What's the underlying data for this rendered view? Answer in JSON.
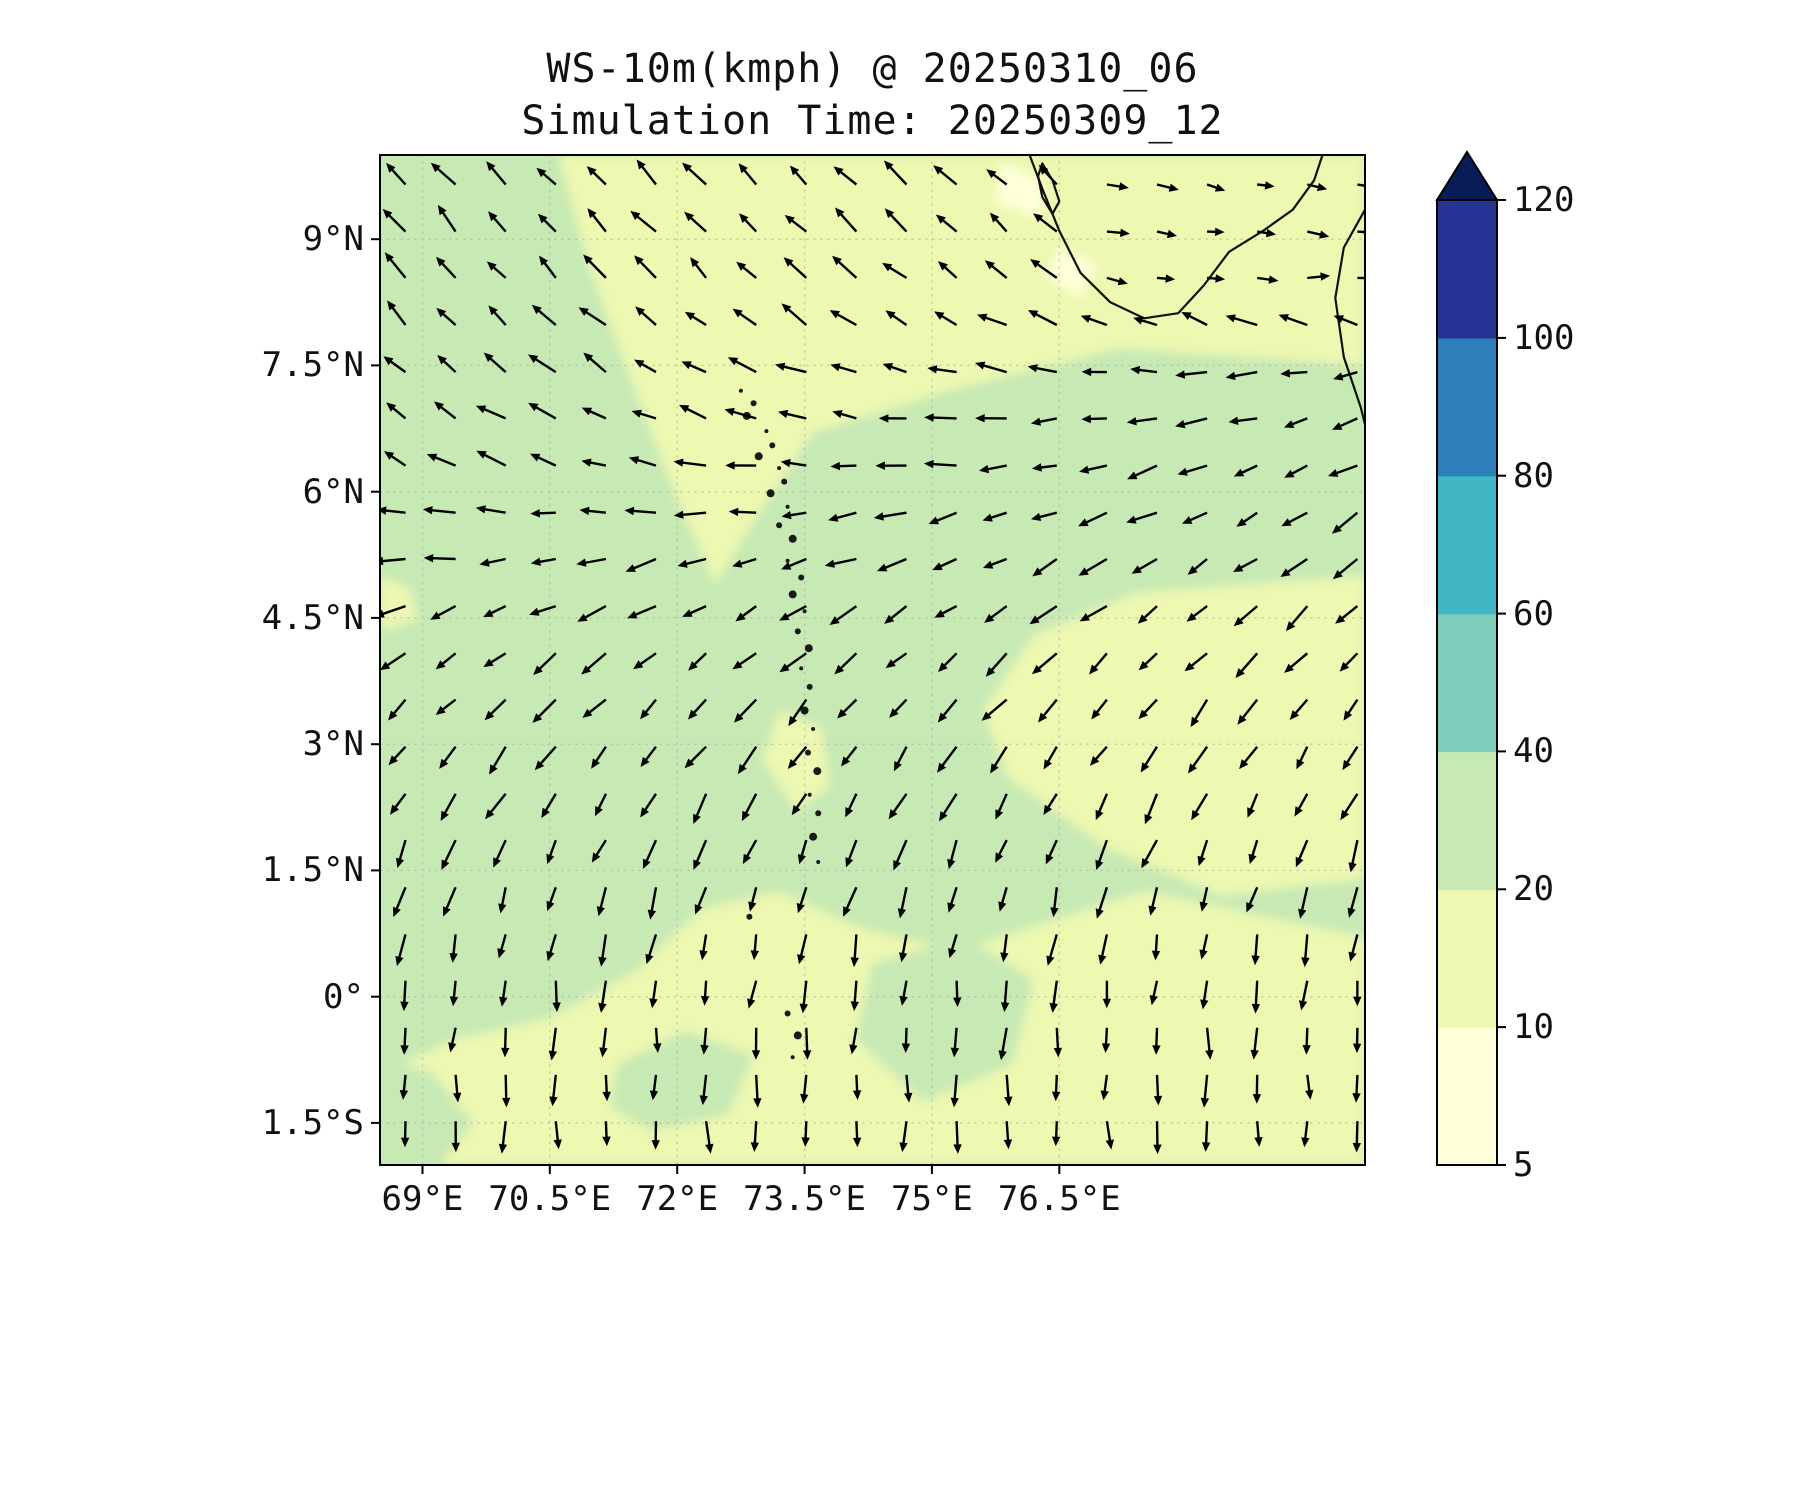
{
  "title": {
    "line1": "WS-10m(kmph) @ 20250310_06",
    "line2": "Simulation Time: 20250309_12"
  },
  "chart_data": {
    "type": "heatmap",
    "subtype": "filled_contour_with_wind_quiver",
    "title": "WS-10m(kmph) @ 20250310_06",
    "subtitle": "Simulation Time: 20250309_12",
    "variable": "10 m wind speed",
    "units": "kmph",
    "lon_range": [
      68.5,
      80.1
    ],
    "lat_range": [
      -2,
      10
    ],
    "x_tick_labels": [
      "69°E",
      "70.5°E",
      "72°E",
      "73.5°E",
      "75°E",
      "76.5°E"
    ],
    "x_tick_lons": [
      69,
      70.5,
      72,
      73.5,
      75,
      76.5
    ],
    "y_tick_labels": [
      "9°N",
      "7.5°N",
      "6°N",
      "4.5°N",
      "3°N",
      "1.5°N",
      "0°",
      "1.5°S"
    ],
    "y_tick_lats": [
      9,
      7.5,
      6,
      4.5,
      3,
      1.5,
      0,
      -1.5
    ],
    "levels": [
      5,
      10,
      20,
      40,
      60,
      80,
      100,
      120
    ],
    "palette": [
      "#ffffd9",
      "#edf8b1",
      "#c7e9b4",
      "#7fcdbb",
      "#41b6c4",
      "#2c7fb8",
      "#253494"
    ],
    "over_color": "#081d58",
    "colorbar_tick_labels": [
      "5",
      "10",
      "20",
      "40",
      "60",
      "80",
      "100",
      "120"
    ],
    "wind_speed_summary": {
      "most_of_domain_kmph": [
        20,
        40
      ],
      "north_band_and_south_band_kmph": [
        10,
        20
      ],
      "kerala_coast_spots_kmph": [
        5,
        10
      ]
    },
    "fill_regions": [
      {
        "name": "calm-north-band",
        "range": [
          10,
          20
        ],
        "points": [
          [
            70.6,
            10
          ],
          [
            80.1,
            10
          ],
          [
            80.1,
            7.5
          ],
          [
            77.2,
            7.7
          ],
          [
            75.2,
            7.2
          ],
          [
            73.6,
            6.7
          ],
          [
            73.0,
            5.8
          ],
          [
            72.45,
            4.9
          ],
          [
            72.0,
            5.9
          ],
          [
            71.5,
            7.2
          ],
          [
            70.95,
            8.7
          ]
        ]
      },
      {
        "name": "coastal-spot-1",
        "range": [
          5,
          10
        ],
        "points": [
          [
            75.8,
            9.9
          ],
          [
            76.35,
            9.7
          ],
          [
            76.25,
            9.25
          ],
          [
            75.75,
            9.45
          ]
        ]
      },
      {
        "name": "coastal-spot-2",
        "range": [
          5,
          10
        ],
        "points": [
          [
            76.5,
            8.9
          ],
          [
            76.95,
            8.7
          ],
          [
            76.75,
            8.3
          ],
          [
            76.35,
            8.55
          ]
        ]
      },
      {
        "name": "calm-east-patch",
        "range": [
          10,
          20
        ],
        "points": [
          [
            80.1,
            5.0
          ],
          [
            80.1,
            1.4
          ],
          [
            78.4,
            1.2
          ],
          [
            77.0,
            1.8
          ],
          [
            75.9,
            2.6
          ],
          [
            75.6,
            3.4
          ],
          [
            76.2,
            4.3
          ],
          [
            77.4,
            4.8
          ]
        ]
      },
      {
        "name": "island-chain-pale",
        "range": [
          10,
          20
        ],
        "points": [
          [
            73.2,
            3.4
          ],
          [
            73.7,
            3.2
          ],
          [
            73.8,
            2.5
          ],
          [
            73.4,
            2.2
          ],
          [
            73.0,
            2.8
          ]
        ]
      },
      {
        "name": "calm-south-band",
        "range": [
          10,
          20
        ],
        "points": [
          [
            68.5,
            -0.9
          ],
          [
            69.4,
            -0.5
          ],
          [
            70.5,
            -0.25
          ],
          [
            71.5,
            0.3
          ],
          [
            72.3,
            1.05
          ],
          [
            73.2,
            1.25
          ],
          [
            74.2,
            0.8
          ],
          [
            75.3,
            0.55
          ],
          [
            76.4,
            0.9
          ],
          [
            77.5,
            1.25
          ],
          [
            78.7,
            1.0
          ],
          [
            80.1,
            0.7
          ],
          [
            80.1,
            -2
          ],
          [
            68.5,
            -2
          ]
        ]
      },
      {
        "name": "south-green-patch-west",
        "range": [
          20,
          40
        ],
        "points": [
          [
            68.5,
            -0.7
          ],
          [
            69.1,
            -0.9
          ],
          [
            69.6,
            -1.5
          ],
          [
            69.2,
            -2
          ],
          [
            68.5,
            -2
          ]
        ]
      },
      {
        "name": "south-green-patch-mid",
        "range": [
          20,
          40
        ],
        "points": [
          [
            71.3,
            -0.8
          ],
          [
            72.1,
            -0.4
          ],
          [
            72.9,
            -0.7
          ],
          [
            72.6,
            -1.4
          ],
          [
            71.7,
            -1.6
          ],
          [
            71.2,
            -1.3
          ]
        ]
      },
      {
        "name": "south-green-patch-east",
        "range": [
          20,
          40
        ],
        "points": [
          [
            74.3,
            0.4
          ],
          [
            75.4,
            0.7
          ],
          [
            76.2,
            0.2
          ],
          [
            75.95,
            -0.8
          ],
          [
            74.9,
            -1.25
          ],
          [
            74.1,
            -0.5
          ]
        ]
      },
      {
        "name": "west-edge-speck",
        "range": [
          10,
          20
        ],
        "points": [
          [
            68.5,
            5.0
          ],
          [
            68.85,
            4.85
          ],
          [
            68.95,
            4.5
          ],
          [
            68.6,
            4.35
          ],
          [
            68.5,
            4.45
          ]
        ]
      }
    ],
    "islands": [
      [
        72.75,
        7.2
      ],
      [
        72.9,
        7.05
      ],
      [
        72.82,
        6.9
      ],
      [
        73.05,
        6.72
      ],
      [
        73.12,
        6.55
      ],
      [
        72.96,
        6.42
      ],
      [
        73.2,
        6.28
      ],
      [
        73.26,
        6.12
      ],
      [
        73.1,
        5.98
      ],
      [
        73.3,
        5.82
      ],
      [
        73.2,
        5.6
      ],
      [
        73.36,
        5.44
      ],
      [
        73.3,
        5.18
      ],
      [
        73.46,
        4.98
      ],
      [
        73.36,
        4.78
      ],
      [
        73.5,
        4.58
      ],
      [
        73.42,
        4.34
      ],
      [
        73.55,
        4.14
      ],
      [
        73.46,
        3.9
      ],
      [
        73.56,
        3.68
      ],
      [
        73.5,
        3.4
      ],
      [
        73.6,
        3.18
      ],
      [
        73.54,
        2.9
      ],
      [
        73.65,
        2.68
      ],
      [
        73.56,
        2.4
      ],
      [
        73.66,
        2.18
      ],
      [
        73.6,
        1.9
      ],
      [
        73.66,
        1.6
      ],
      [
        73.3,
        -0.2
      ],
      [
        73.42,
        -0.46
      ],
      [
        73.36,
        -0.72
      ],
      [
        72.85,
        0.95
      ]
    ],
    "coastlines": [
      {
        "name": "india-south-coast",
        "closed": false,
        "points": [
          [
            76.15,
            10
          ],
          [
            76.3,
            9.6
          ],
          [
            76.5,
            9.1
          ],
          [
            76.75,
            8.6
          ],
          [
            77.1,
            8.25
          ],
          [
            77.5,
            8.06
          ],
          [
            77.9,
            8.12
          ],
          [
            78.2,
            8.45
          ],
          [
            78.5,
            8.85
          ],
          [
            78.9,
            9.1
          ],
          [
            79.25,
            9.35
          ],
          [
            79.5,
            9.7
          ],
          [
            79.6,
            10
          ]
        ]
      },
      {
        "name": "vembanad-lagoon",
        "closed": true,
        "points": [
          [
            76.3,
            9.9
          ],
          [
            76.42,
            9.7
          ],
          [
            76.5,
            9.45
          ],
          [
            76.42,
            9.3
          ],
          [
            76.3,
            9.5
          ],
          [
            76.25,
            9.75
          ]
        ]
      },
      {
        "name": "sri-lanka-west-coast",
        "closed": false,
        "points": [
          [
            80.1,
            9.35
          ],
          [
            79.85,
            8.9
          ],
          [
            79.75,
            8.3
          ],
          [
            79.85,
            7.6
          ],
          [
            80.05,
            7.0
          ],
          [
            80.1,
            6.8
          ]
        ]
      }
    ],
    "quiver": {
      "note": "arrow direction in degrees, 0=east, 90=north; a0 = west edge, a1 = east edge of row",
      "lon_start": 68.8,
      "lon_step": 0.59,
      "n_cols": 20,
      "rows": [
        {
          "lat": 9.65,
          "a0": 132,
          "a1": 140
        },
        {
          "lat": 9.09,
          "a0": 131,
          "a1": 143
        },
        {
          "lat": 8.54,
          "a0": 130,
          "a1": 148
        },
        {
          "lat": 7.98,
          "a0": 133,
          "a1": 165
        },
        {
          "lat": 7.42,
          "a0": 136,
          "a1": 190
        },
        {
          "lat": 6.87,
          "a0": 142,
          "a1": 202
        },
        {
          "lat": 6.31,
          "a0": 152,
          "a1": 208
        },
        {
          "lat": 5.75,
          "a0": 168,
          "a1": 214
        },
        {
          "lat": 5.2,
          "a0": 185,
          "a1": 218
        },
        {
          "lat": 4.64,
          "a0": 202,
          "a1": 222
        },
        {
          "lat": 4.08,
          "a0": 215,
          "a1": 227
        },
        {
          "lat": 3.53,
          "a0": 224,
          "a1": 232
        },
        {
          "lat": 2.97,
          "a0": 231,
          "a1": 238
        },
        {
          "lat": 2.41,
          "a0": 238,
          "a1": 244
        },
        {
          "lat": 1.86,
          "a0": 245,
          "a1": 250
        },
        {
          "lat": 1.3,
          "a0": 252,
          "a1": 256
        },
        {
          "lat": 0.74,
          "a0": 258,
          "a1": 261
        },
        {
          "lat": 0.19,
          "a0": 263,
          "a1": 265
        },
        {
          "lat": -0.37,
          "a0": 266,
          "a1": 268
        },
        {
          "lat": -0.93,
          "a0": 268,
          "a1": 270
        },
        {
          "lat": -1.48,
          "a0": 270,
          "a1": 271
        }
      ]
    }
  }
}
